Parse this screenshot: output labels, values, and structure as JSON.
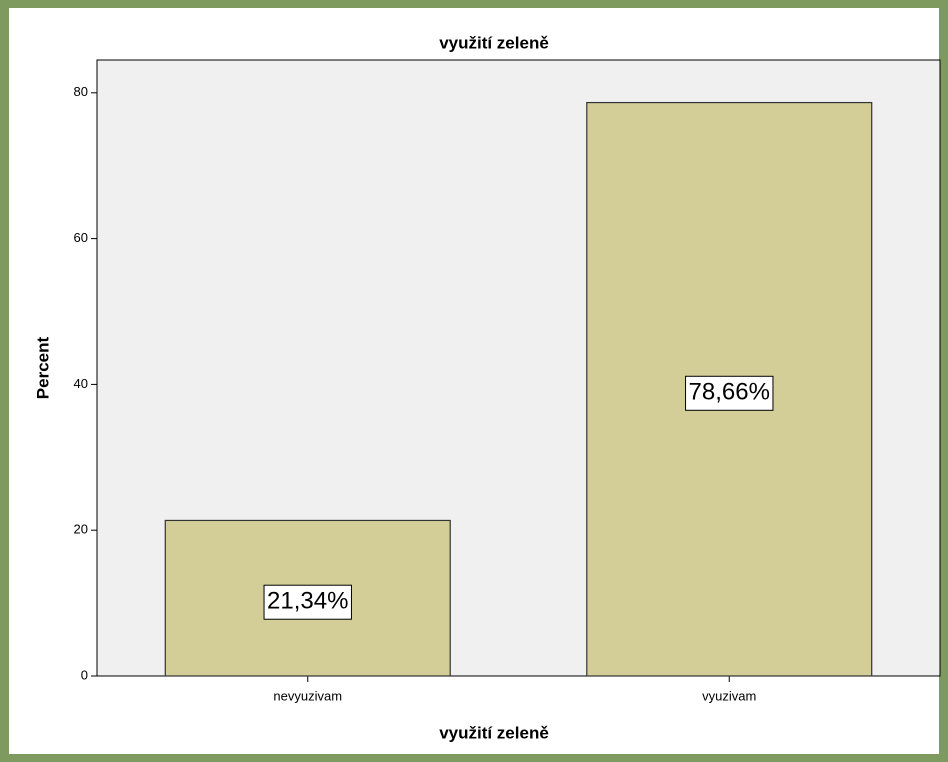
{
  "chart_data": {
    "type": "bar",
    "title": "využití zeleně",
    "x_label": "využití zeleně",
    "y_label": "Percent",
    "categories": [
      "nevyuzivam",
      "vyuzivam"
    ],
    "values": [
      21.34,
      78.66
    ],
    "value_labels": [
      "21,34%",
      "78,66%"
    ],
    "color": "#d3ce97",
    "ylim": [
      0,
      84.5
    ],
    "yticks": [
      0,
      20,
      40,
      60,
      80
    ],
    "grid": false
  }
}
